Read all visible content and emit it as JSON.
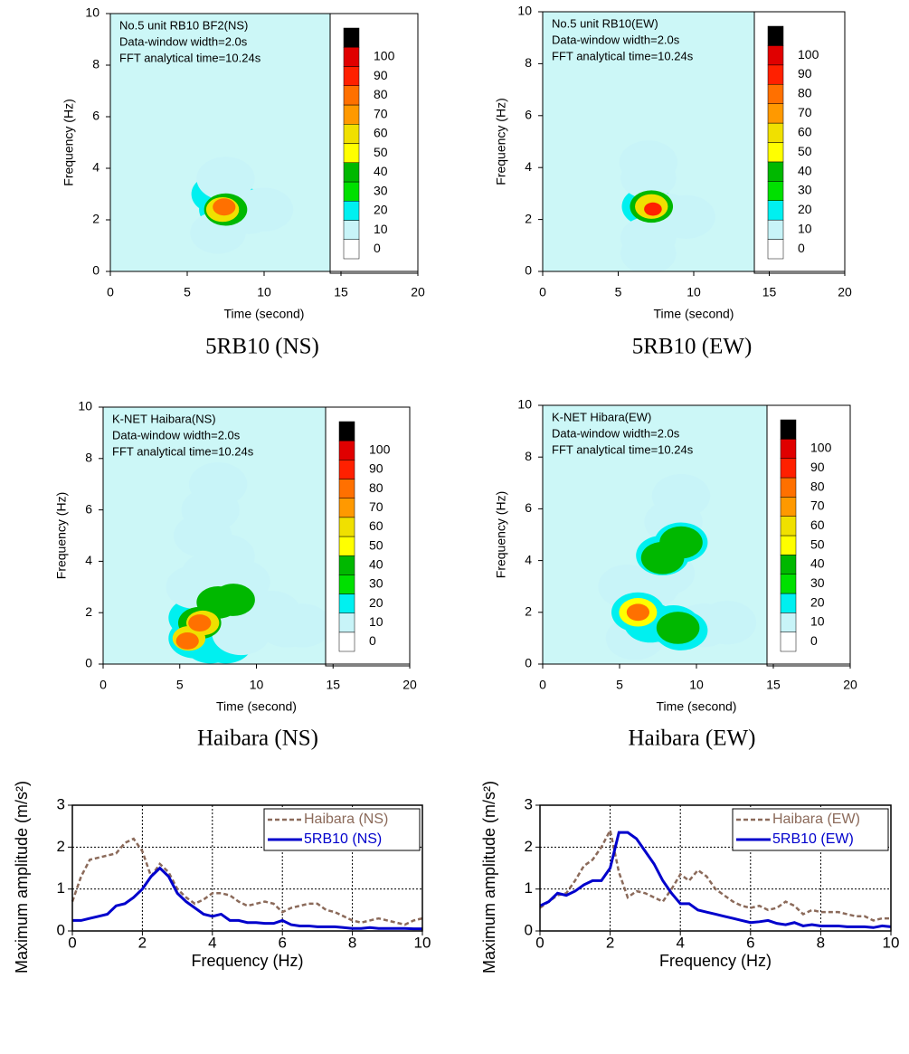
{
  "chart_data": [
    {
      "type": "contour",
      "caption": "5RB10 (NS)",
      "annotation": [
        "No.5 unit RB10 BF2(NS)",
        "Data-window width=2.0s",
        "FFT analytical time=10.24s"
      ],
      "xlabel": "Time (second)",
      "ylabel": "Frequency (Hz)",
      "xlim": [
        0,
        20
      ],
      "ylim": [
        0,
        10
      ],
      "xticks": [
        0,
        5,
        10,
        15,
        20
      ],
      "yticks": [
        0,
        2,
        4,
        6,
        8,
        10
      ],
      "background": "#ccf7f7",
      "colorbar_labels": [
        0,
        10,
        20,
        30,
        40,
        50,
        60,
        70,
        80,
        90,
        100
      ],
      "colors": [
        "#ffffff",
        "#c8f4f8",
        "#00f0f0",
        "#00e000",
        "#00b800",
        "#ffff00",
        "#f0e000",
        "#ff9900",
        "#ff7000",
        "#ff2000",
        "#e00000",
        "#000000"
      ],
      "x": [
        7.5,
        7,
        7,
        8.5,
        7.5,
        9,
        10,
        7.5,
        7.3,
        7.4
      ],
      "y": [
        2.4,
        3,
        1.5,
        2.5,
        3.6,
        2.3,
        2.4,
        2.4,
        2.4,
        2.5
      ],
      "values": [
        20,
        20,
        15,
        20,
        10,
        10,
        10,
        40,
        60,
        80
      ]
    },
    {
      "type": "contour",
      "caption": "5RB10 (EW)",
      "annotation": [
        "No.5 unit RB10(EW)",
        "Data-window width=2.0s",
        "FFT analytical time=10.24s"
      ],
      "xlabel": "Time (second)",
      "ylabel": "Frequency (Hz)",
      "xlim": [
        0,
        20
      ],
      "ylim": [
        0,
        10
      ],
      "xticks": [
        0,
        5,
        10,
        15,
        20
      ],
      "yticks": [
        0,
        2,
        4,
        6,
        8,
        10
      ],
      "background": "#ccf7f7",
      "colorbar_labels": [
        0,
        10,
        20,
        30,
        40,
        50,
        60,
        70,
        80,
        90,
        100
      ],
      "colors": [
        "#ffffff",
        "#c8f4f8",
        "#00f0f0",
        "#00e000",
        "#00b800",
        "#ffff00",
        "#f0e000",
        "#ff9900",
        "#ff7000",
        "#ff2000",
        "#e00000",
        "#000000"
      ],
      "x": [
        7,
        7,
        7,
        7,
        8.2,
        9.5,
        7,
        7.2,
        7.2,
        7.3
      ],
      "y": [
        2.5,
        1.3,
        0.7,
        3.6,
        2.2,
        2.1,
        4.2,
        2.5,
        2.5,
        2.4
      ],
      "values": [
        20,
        15,
        15,
        15,
        15,
        10,
        10,
        40,
        60,
        90
      ]
    },
    {
      "type": "contour",
      "caption": "Haibara (NS)",
      "annotation": [
        "K-NET Haibara(NS)",
        "Data-window width=2.0s",
        "FFT analytical time=10.24s"
      ],
      "xlabel": "Time (second)",
      "ylabel": "Frequency (Hz)",
      "xlim": [
        0,
        20
      ],
      "ylim": [
        0,
        10
      ],
      "xticks": [
        0,
        5,
        10,
        15,
        20
      ],
      "yticks": [
        0,
        2,
        4,
        6,
        8,
        10
      ],
      "background": "#ccf7f7",
      "colorbar_labels": [
        0,
        10,
        20,
        30,
        40,
        50,
        60,
        70,
        80,
        90,
        100
      ],
      "colors": [
        "#ffffff",
        "#c8f4f8",
        "#00f0f0",
        "#00e000",
        "#00b800",
        "#ffff00",
        "#f0e000",
        "#ff9900",
        "#ff7000",
        "#ff2000",
        "#e00000",
        "#000000"
      ],
      "x": [
        6,
        7,
        8,
        6,
        7.5,
        8.5,
        6,
        7,
        8,
        6.5,
        7,
        7.5,
        10,
        11,
        12,
        9,
        9,
        13,
        6.3,
        5.6,
        8.5,
        7.5,
        6.5,
        6.3,
        5.5
      ],
      "y": [
        1,
        0.8,
        0.8,
        1.8,
        2.4,
        2.4,
        3,
        3.5,
        4.2,
        5,
        6,
        7,
        1.8,
        2,
        1.5,
        1.2,
        3.2,
        1.5,
        1.6,
        1,
        2.5,
        2.4,
        1.6,
        1.6,
        0.9
      ],
      "values": [
        20,
        20,
        20,
        20,
        20,
        20,
        10,
        10,
        10,
        10,
        10,
        10,
        10,
        10,
        10,
        10,
        10,
        10,
        40,
        60,
        40,
        40,
        60,
        80,
        80
      ]
    },
    {
      "type": "contour",
      "caption": "Haibara (EW)",
      "annotation": [
        "K-NET Hibara(EW)",
        "Data-window width=2.0s",
        "FFT analytical time=10.24s"
      ],
      "xlabel": "Time (second)",
      "ylabel": "Frequency (Hz)",
      "xlim": [
        0,
        20
      ],
      "ylim": [
        0,
        10
      ],
      "xticks": [
        0,
        5,
        10,
        15,
        20
      ],
      "yticks": [
        0,
        2,
        4,
        6,
        8,
        10
      ],
      "background": "#ccf7f7",
      "colorbar_labels": [
        0,
        10,
        20,
        30,
        40,
        50,
        60,
        70,
        80,
        90,
        100
      ],
      "colors": [
        "#ffffff",
        "#c8f4f8",
        "#00f0f0",
        "#00e000",
        "#00b800",
        "#ffff00",
        "#f0e000",
        "#ff9900",
        "#ff7000",
        "#ff2000",
        "#e00000",
        "#000000"
      ],
      "x": [
        7,
        8,
        10.5,
        12,
        8.5,
        9,
        6,
        5.5,
        6.2,
        7,
        8.5,
        9,
        7.8,
        9,
        8.8,
        9,
        7.8,
        6.2,
        6.2
      ],
      "y": [
        3,
        3.5,
        1.5,
        1.6,
        5.5,
        6.5,
        1,
        3,
        2,
        1.6,
        1.5,
        1.3,
        4.2,
        4.7,
        1.4,
        4.7,
        4.1,
        2,
        2
      ],
      "values": [
        10,
        10,
        10,
        10,
        10,
        10,
        10,
        10,
        20,
        20,
        20,
        20,
        20,
        20,
        40,
        40,
        40,
        50,
        80
      ]
    },
    {
      "type": "line",
      "xlabel": "Frequency (Hz)",
      "ylabel": "Maximum amplitude (m/s²)",
      "xlim": [
        0,
        10
      ],
      "ylim": [
        0,
        3
      ],
      "xticks": [
        0,
        2,
        4,
        6,
        8,
        10
      ],
      "yticks": [
        0,
        1,
        2,
        3
      ],
      "grid": true,
      "legend": "top-right",
      "x": [
        0,
        0.25,
        0.5,
        0.75,
        1,
        1.25,
        1.5,
        1.75,
        2,
        2.25,
        2.5,
        2.75,
        3,
        3.25,
        3.5,
        3.75,
        4,
        4.25,
        4.5,
        4.75,
        5,
        5.25,
        5.5,
        5.75,
        6,
        6.25,
        6.5,
        6.75,
        7,
        7.25,
        7.5,
        7.75,
        8,
        8.25,
        8.5,
        8.75,
        9,
        9.25,
        9.5,
        9.75,
        10
      ],
      "series": [
        {
          "name": "Haibara (NS)",
          "color": "#8b6a5a",
          "dashed": true,
          "values": [
            0.7,
            1.3,
            1.7,
            1.75,
            1.8,
            1.85,
            2.1,
            2.2,
            1.9,
            1.3,
            1.6,
            1.4,
            1.0,
            0.8,
            0.65,
            0.75,
            0.9,
            0.9,
            0.85,
            0.7,
            0.6,
            0.65,
            0.7,
            0.65,
            0.45,
            0.55,
            0.6,
            0.65,
            0.65,
            0.5,
            0.45,
            0.35,
            0.25,
            0.2,
            0.25,
            0.3,
            0.25,
            0.2,
            0.15,
            0.25,
            0.3
          ]
        },
        {
          "name": "5RB10 (NS)",
          "color": "#0000cc",
          "dashed": false,
          "values": [
            0.25,
            0.25,
            0.3,
            0.35,
            0.4,
            0.6,
            0.65,
            0.8,
            1.0,
            1.3,
            1.5,
            1.3,
            0.9,
            0.7,
            0.55,
            0.4,
            0.35,
            0.4,
            0.25,
            0.25,
            0.2,
            0.2,
            0.18,
            0.18,
            0.25,
            0.15,
            0.12,
            0.12,
            0.1,
            0.1,
            0.1,
            0.08,
            0.06,
            0.06,
            0.08,
            0.06,
            0.06,
            0.06,
            0.06,
            0.05,
            0.05
          ]
        }
      ]
    },
    {
      "type": "line",
      "xlabel": "Frequency (Hz)",
      "ylabel": "Maximum amplitude (m/s²)",
      "xlim": [
        0,
        10
      ],
      "ylim": [
        0,
        3
      ],
      "xticks": [
        0,
        2,
        4,
        6,
        8,
        10
      ],
      "yticks": [
        0,
        1,
        2,
        3
      ],
      "grid": true,
      "legend": "top-right",
      "x": [
        0,
        0.25,
        0.5,
        0.75,
        1,
        1.25,
        1.5,
        1.75,
        2,
        2.25,
        2.5,
        2.75,
        3,
        3.25,
        3.5,
        3.75,
        4,
        4.25,
        4.5,
        4.75,
        5,
        5.25,
        5.5,
        5.75,
        6,
        6.25,
        6.5,
        6.75,
        7,
        7.25,
        7.5,
        7.75,
        8,
        8.25,
        8.5,
        8.75,
        9,
        9.25,
        9.5,
        9.75,
        10
      ],
      "series": [
        {
          "name": "Haibara (EW)",
          "color": "#8b6a5a",
          "dashed": true,
          "values": [
            0.55,
            0.7,
            0.85,
            0.9,
            1.2,
            1.55,
            1.7,
            2.0,
            2.4,
            1.4,
            0.8,
            0.95,
            0.9,
            0.8,
            0.7,
            1.0,
            1.35,
            1.2,
            1.45,
            1.3,
            1.0,
            0.85,
            0.7,
            0.6,
            0.55,
            0.6,
            0.5,
            0.55,
            0.7,
            0.6,
            0.4,
            0.5,
            0.45,
            0.45,
            0.45,
            0.4,
            0.35,
            0.35,
            0.25,
            0.3,
            0.3
          ]
        },
        {
          "name": "5RB10 (EW)",
          "color": "#0000cc",
          "dashed": false,
          "values": [
            0.6,
            0.7,
            0.9,
            0.85,
            0.95,
            1.1,
            1.2,
            1.2,
            1.5,
            2.35,
            2.35,
            2.2,
            1.9,
            1.6,
            1.2,
            0.9,
            0.65,
            0.65,
            0.5,
            0.45,
            0.4,
            0.35,
            0.3,
            0.25,
            0.2,
            0.22,
            0.25,
            0.18,
            0.15,
            0.2,
            0.12,
            0.15,
            0.12,
            0.12,
            0.12,
            0.1,
            0.1,
            0.1,
            0.08,
            0.12,
            0.1
          ]
        }
      ]
    }
  ]
}
